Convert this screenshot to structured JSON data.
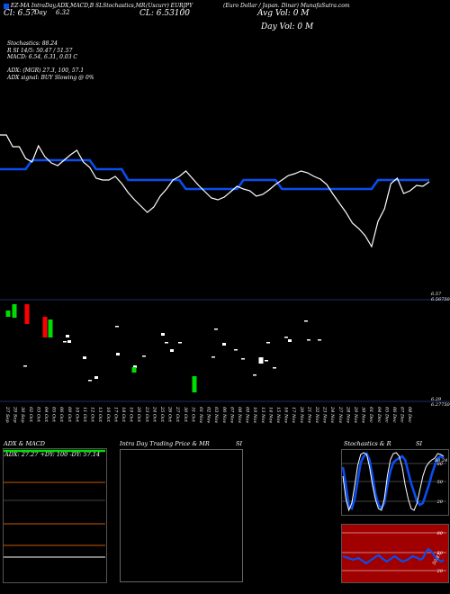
{
  "header": {
    "left": "EZ-MA IntraDay,ADX,MACD,B",
    "sma_label": "SLStochastics,MR",
    "symbol": "(Uscurr) EURJPY",
    "right": "(Euro Dollar / Japan. Dinar) MunafaSutra.com",
    "top_value": "Cl: 6.5?",
    "day_label": "Day",
    "day_change": "6.32",
    "close_label": "CL: 6.53100",
    "avg_vol": "Avg Vol: 0  M",
    "day_vol": "Day Vol: 0  M"
  },
  "info_lines": [
    "Stochastics: 88.24",
    "R                  SI 14/5: 50.47 / 51.57",
    "MACD: 6.54, 6.31, 0.03 C",
    "",
    "ADX:                           (MGR) 27.3,  100,  57.1",
    "ADX  signal:                                  BUY Slowing @ 0%"
  ],
  "price_axis": {
    "top_label": "6.56750",
    "top_small": "6.57",
    "bottom_label": "6.27750",
    "bottom_small": "6.29"
  },
  "x_labels": [
    "27 Sep",
    "29 Sep",
    "30 Sep",
    "02 Oct",
    "03 Oct",
    "04 Oct",
    "05 Oct",
    "06 Oct",
    "09 Oct",
    "10 Oct",
    "11 Oct",
    "12 Oct",
    "13 Oct",
    "16 Oct",
    "17 Oct",
    "18 Oct",
    "19 Oct",
    "20 Oct",
    "23 Oct",
    "24 Oct",
    "25 Oct",
    "26 Oct",
    "27 Oct",
    "30 Oct",
    "31 Oct",
    "01 Nov",
    "02 Nov",
    "03 Nov",
    "06 Nov",
    "07 Nov",
    "08 Nov",
    "09 Nov",
    "10 Nov",
    "13 Nov",
    "14 Nov",
    "15 Nov",
    "16 Nov",
    "17 Nov",
    "20 Nov",
    "21 Nov",
    "22 Nov",
    "23 Nov",
    "24 Nov",
    "27 Nov",
    "28 Nov",
    "29 Nov",
    "30 Nov",
    "01 Dec",
    "04 Dec",
    "05 Dec",
    "06 Dec",
    "07 Dec",
    "08 Dec"
  ],
  "chart_data": {
    "type": "line",
    "series": [
      {
        "values": [
          150,
          150,
          163,
          163,
          176,
          180,
          162,
          174,
          181,
          184,
          178,
          172,
          167,
          180,
          186,
          198,
          200,
          200,
          196,
          204,
          214,
          222,
          229,
          236,
          230,
          218,
          210,
          200,
          196,
          190,
          198,
          206,
          213,
          220,
          222,
          219,
          213,
          207,
          210,
          212,
          218,
          216,
          211,
          205,
          200,
          195,
          193,
          190,
          192,
          196,
          199,
          205,
          216,
          226,
          236,
          248,
          254,
          262,
          274,
          246,
          232,
          204,
          198,
          215,
          212,
          206,
          207,
          202
        ]
      },
      {
        "values": [
          188,
          188,
          188,
          188,
          188,
          178,
          178,
          178,
          178,
          178,
          178,
          178,
          178,
          178,
          178,
          188,
          188,
          188,
          188,
          188,
          200,
          200,
          200,
          200,
          200,
          200,
          200,
          200,
          200,
          210,
          210,
          210,
          210,
          210,
          210,
          210,
          210,
          210,
          200,
          200,
          200,
          200,
          200,
          200,
          210,
          210,
          210,
          210,
          210,
          210,
          210,
          210,
          210,
          210,
          210,
          210,
          210,
          210,
          210,
          200,
          200,
          200,
          200,
          200,
          200,
          200,
          200,
          200
        ]
      }
    ],
    "candles": [
      {
        "o": 345,
        "c": 352,
        "color": "#00dd00"
      },
      {
        "o": 338,
        "c": 353,
        "color": "#00dd00"
      },
      {
        "o": 338,
        "c": 360,
        "color": "#ff0000"
      },
      {
        "o": 352,
        "c": 375,
        "color": "#ff0000"
      },
      {
        "o": 355,
        "c": 375,
        "color": "#00dd00"
      },
      {
        "o": 378,
        "c": 381,
        "color": "#ffffff"
      },
      {
        "o": 392,
        "c": 395,
        "color": "#ffffff"
      },
      {
        "o": 406,
        "c": 409,
        "color": "#ffffff"
      },
      {
        "o": 418,
        "c": 421,
        "color": "#ffffff"
      },
      {
        "o": 408,
        "c": 414,
        "color": "#00dd00"
      },
      {
        "o": 396,
        "c": 399,
        "color": "#ffffff"
      },
      {
        "o": 372,
        "c": 375,
        "color": "#ffffff"
      },
      {
        "o": 418,
        "c": 436,
        "color": "#00dd00"
      },
      {
        "o": 388,
        "c": 391,
        "color": "#ffffff"
      },
      {
        "o": 370,
        "c": 373,
        "color": "#ffffff"
      },
      {
        "o": 381,
        "c": 384,
        "color": "#ffffff"
      },
      {
        "o": 397,
        "c": 404,
        "color": "#ffffff"
      },
      {
        "o": 377,
        "c": 380,
        "color": "#ffffff"
      }
    ],
    "xlabel": "",
    "ylabel": ""
  },
  "panels": {
    "adx_title": "ADX  & MACD",
    "adx_values": "ADX: 27.27 +DY: 100  -DY: 57.14",
    "intraday_title": "Intra  Day Trading Price  & MR",
    "intraday_si": "SI",
    "stoch_title": "Stochastics & R",
    "stoch_si": "SI",
    "stoch_levels": [
      "80",
      "50",
      "20"
    ],
    "rsi_levels": [
      "80",
      "50",
      "20"
    ],
    "stoch_value": "88.24",
    "rsi_value": "50.47"
  },
  "colors": {
    "sma_blue": "#0a4df0",
    "bg": "#000000",
    "rsi_bg": "#a00000"
  }
}
